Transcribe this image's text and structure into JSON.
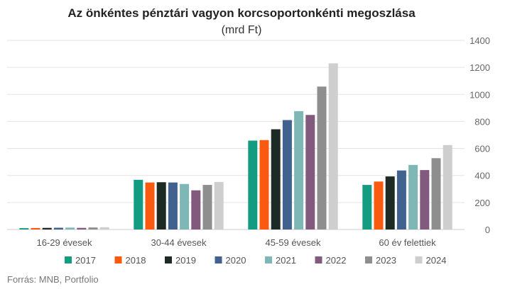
{
  "chart_data": {
    "type": "bar",
    "title": "Az önkéntes pénztári vagyon korcsoportonkénti megoszlása",
    "subtitle": "(mrd Ft)",
    "categories": [
      "16-29 évesek",
      "30-44 évesek",
      "45-59 évesek",
      "60 év felettiek"
    ],
    "series": [
      {
        "name": "2017",
        "color": "#139c81",
        "values": [
          10,
          368,
          658,
          330
        ]
      },
      {
        "name": "2018",
        "color": "#f95a10",
        "values": [
          11,
          348,
          662,
          355
        ]
      },
      {
        "name": "2019",
        "color": "#1e2a24",
        "values": [
          12,
          350,
          742,
          393
        ]
      },
      {
        "name": "2020",
        "color": "#41628e",
        "values": [
          13,
          348,
          810,
          437
        ]
      },
      {
        "name": "2021",
        "color": "#7fb6b6",
        "values": [
          14,
          337,
          876,
          478
        ]
      },
      {
        "name": "2022",
        "color": "#815a7e",
        "values": [
          12,
          290,
          848,
          440
        ]
      },
      {
        "name": "2023",
        "color": "#8e8e8e",
        "values": [
          15,
          330,
          1058,
          528
        ]
      },
      {
        "name": "2024",
        "color": "#cecece",
        "values": [
          17,
          352,
          1230,
          625
        ]
      }
    ],
    "ylim": [
      0,
      1400
    ],
    "yticks": [
      0,
      200,
      400,
      600,
      800,
      1000,
      1200,
      1400
    ],
    "y_axis_side": "right",
    "grid": true,
    "legend": "bottom"
  },
  "source": "Forrás: MNB, Portfolio"
}
